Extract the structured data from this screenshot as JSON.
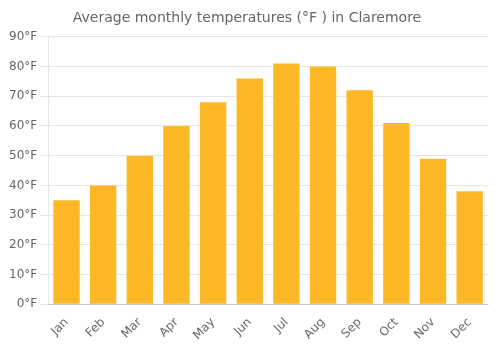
{
  "chart_data": {
    "type": "bar",
    "title": "Average monthly temperatures (°F ) in Claremore",
    "categories": [
      "Jan",
      "Feb",
      "Mar",
      "Apr",
      "May",
      "Jun",
      "Jul",
      "Aug",
      "Sep",
      "Oct",
      "Nov",
      "Dec"
    ],
    "values": [
      35,
      40,
      50,
      60,
      68,
      76,
      81,
      80,
      72,
      61,
      49,
      38
    ],
    "color": "#FDB827",
    "ylim": [
      0,
      90
    ],
    "yticks": [
      {
        "value": 0,
        "label": "0°F"
      },
      {
        "value": 10,
        "label": "10°F"
      },
      {
        "value": 20,
        "label": "20°F"
      },
      {
        "value": 30,
        "label": "30°F"
      },
      {
        "value": 40,
        "label": "40°F"
      },
      {
        "value": 50,
        "label": "50°F"
      },
      {
        "value": 60,
        "label": "60°F"
      },
      {
        "value": 70,
        "label": "70°F"
      },
      {
        "value": 80,
        "label": "80°F"
      },
      {
        "value": 90,
        "label": "90°F"
      }
    ],
    "grid": true
  }
}
